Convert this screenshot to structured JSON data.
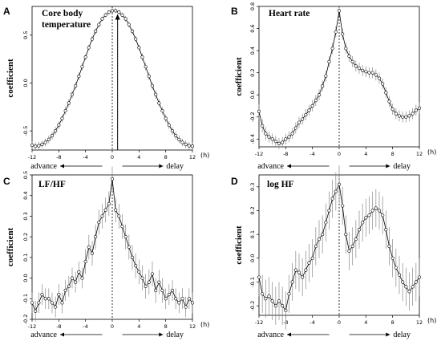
{
  "chart_data": [
    {
      "type": "line",
      "panel_label": "A",
      "title_lines": [
        "Core body",
        "temperature"
      ],
      "xlabel": "",
      "ylabel": "coefficient",
      "x_unit": "(h)",
      "xlim": [
        -12,
        12
      ],
      "ylim": [
        -0.7,
        0.8
      ],
      "x_ticks": [
        -12,
        -8,
        -4,
        0,
        4,
        8,
        12
      ],
      "y_ticks": [
        -0.5,
        0.0,
        0.5
      ],
      "advance_label": "advance",
      "delay_label": "delay",
      "grid": false,
      "series": [
        {
          "x": [
            -12,
            -11.5,
            -11,
            -10.5,
            -10,
            -9.5,
            -9,
            -8.5,
            -8,
            -7.5,
            -7,
            -6.5,
            -6,
            -5.5,
            -5,
            -4.5,
            -4,
            -3.5,
            -3,
            -2.5,
            -2,
            -1.5,
            -1,
            -0.5,
            0,
            0.5,
            1,
            1.5,
            2,
            2.5,
            3,
            3.5,
            4,
            4.5,
            5,
            5.5,
            6,
            6.5,
            7,
            7.5,
            8,
            8.5,
            9,
            9.5,
            10,
            10.5,
            11,
            11.5,
            12
          ],
          "y": [
            -0.65,
            -0.66,
            -0.655,
            -0.64,
            -0.62,
            -0.59,
            -0.55,
            -0.5,
            -0.44,
            -0.37,
            -0.29,
            -0.21,
            -0.12,
            -0.03,
            0.07,
            0.17,
            0.27,
            0.37,
            0.46,
            0.54,
            0.61,
            0.67,
            0.71,
            0.74,
            0.755,
            0.755,
            0.74,
            0.71,
            0.67,
            0.61,
            0.54,
            0.46,
            0.37,
            0.27,
            0.17,
            0.07,
            -0.03,
            -0.12,
            -0.21,
            -0.29,
            -0.37,
            -0.44,
            -0.5,
            -0.55,
            -0.59,
            -0.62,
            -0.64,
            -0.655,
            -0.66
          ],
          "err": [
            0.04,
            0.04,
            0.04,
            0.04,
            0.04,
            0.04,
            0.04,
            0.04,
            0.04,
            0.04,
            0.04,
            0.04,
            0.04,
            0.04,
            0.04,
            0.04,
            0.03,
            0.03,
            0.03,
            0.03,
            0.03,
            0.025,
            0.025,
            0.025,
            0.025,
            0.025,
            0.025,
            0.025,
            0.03,
            0.03,
            0.03,
            0.03,
            0.03,
            0.04,
            0.04,
            0.04,
            0.04,
            0.04,
            0.04,
            0.04,
            0.04,
            0.04,
            0.04,
            0.04,
            0.04,
            0.04,
            0.04,
            0.04,
            0.04
          ]
        }
      ],
      "zero_line_x": 0,
      "peak_arrow": {
        "x": 0.8,
        "y_from": -0.7,
        "y_to": 0.72
      }
    },
    {
      "type": "line",
      "panel_label": "B",
      "title_lines": [
        "Heart rate"
      ],
      "xlabel": "",
      "ylabel": "coefficient",
      "x_unit": "(h)",
      "xlim": [
        -12,
        12
      ],
      "ylim": [
        -0.47,
        0.8
      ],
      "x_ticks": [
        -12,
        -8,
        -4,
        0,
        4,
        8,
        12
      ],
      "y_ticks": [
        -0.4,
        -0.2,
        0.0,
        0.2,
        0.4,
        0.6,
        0.8
      ],
      "advance_label": "advance",
      "delay_label": "delay",
      "grid": false,
      "series": [
        {
          "x": [
            -12,
            -11.5,
            -11,
            -10.5,
            -10,
            -9.5,
            -9,
            -8.5,
            -8,
            -7.5,
            -7,
            -6.5,
            -6,
            -5.5,
            -5,
            -4.5,
            -4,
            -3.5,
            -3,
            -2.5,
            -2,
            -1.5,
            -1,
            -0.5,
            0,
            0.5,
            1,
            1.5,
            2,
            2.5,
            3,
            3.5,
            4,
            4.5,
            5,
            5.5,
            6,
            6.5,
            7,
            7.5,
            8,
            8.5,
            9,
            9.5,
            10,
            10.5,
            11,
            11.5,
            12
          ],
          "y": [
            -0.15,
            -0.28,
            -0.35,
            -0.38,
            -0.4,
            -0.42,
            -0.44,
            -0.43,
            -0.4,
            -0.38,
            -0.35,
            -0.3,
            -0.25,
            -0.22,
            -0.18,
            -0.14,
            -0.1,
            -0.05,
            0.0,
            0.08,
            0.17,
            0.3,
            0.42,
            0.57,
            0.76,
            0.55,
            0.42,
            0.35,
            0.3,
            0.26,
            0.24,
            0.22,
            0.21,
            0.2,
            0.2,
            0.18,
            0.15,
            0.1,
            0.02,
            -0.06,
            -0.13,
            -0.17,
            -0.19,
            -0.2,
            -0.2,
            -0.19,
            -0.17,
            -0.14,
            -0.12
          ],
          "err": [
            0.07,
            0.06,
            0.06,
            0.05,
            0.05,
            0.05,
            0.05,
            0.05,
            0.05,
            0.05,
            0.05,
            0.05,
            0.05,
            0.05,
            0.05,
            0.05,
            0.05,
            0.05,
            0.05,
            0.05,
            0.05,
            0.05,
            0.05,
            0.05,
            0.05,
            0.05,
            0.05,
            0.05,
            0.05,
            0.05,
            0.05,
            0.05,
            0.05,
            0.05,
            0.05,
            0.05,
            0.05,
            0.05,
            0.05,
            0.05,
            0.05,
            0.05,
            0.05,
            0.05,
            0.05,
            0.05,
            0.05,
            0.05,
            0.05
          ]
        }
      ],
      "zero_line_x": 0
    },
    {
      "type": "line",
      "panel_label": "C",
      "title_lines": [
        "LF/HF"
      ],
      "xlabel": "",
      "ylabel": "coefficient",
      "x_unit": "(h)",
      "xlim": [
        -12,
        12
      ],
      "ylim": [
        -0.2,
        0.5
      ],
      "x_ticks": [
        -12,
        -8,
        -4,
        0,
        4,
        8,
        12
      ],
      "y_ticks": [
        -0.2,
        -0.1,
        0.0,
        0.1,
        0.2,
        0.3,
        0.4,
        0.5
      ],
      "advance_label": "advance",
      "delay_label": "delay",
      "grid": false,
      "series": [
        {
          "x": [
            -12,
            -11.5,
            -11,
            -10.5,
            -10,
            -9.5,
            -9,
            -8.5,
            -8,
            -7.5,
            -7,
            -6.5,
            -6,
            -5.5,
            -5,
            -4.5,
            -4,
            -3.5,
            -3,
            -2.5,
            -2,
            -1.5,
            -1,
            -0.5,
            0,
            0.5,
            1,
            1.5,
            2,
            2.5,
            3,
            3.5,
            4,
            4.5,
            5,
            5.5,
            6,
            6.5,
            7,
            7.5,
            8,
            8.5,
            9,
            9.5,
            10,
            10.5,
            11,
            11.5,
            12
          ],
          "y": [
            -0.12,
            -0.16,
            -0.12,
            -0.08,
            -0.1,
            -0.1,
            -0.12,
            -0.14,
            -0.08,
            -0.12,
            -0.06,
            -0.04,
            0.0,
            -0.02,
            0.03,
            0.0,
            0.08,
            0.15,
            0.12,
            0.2,
            0.27,
            0.3,
            0.33,
            0.36,
            0.48,
            0.33,
            0.3,
            0.25,
            0.2,
            0.15,
            0.1,
            0.06,
            0.03,
            0.0,
            -0.04,
            -0.02,
            0.02,
            -0.06,
            -0.02,
            -0.06,
            -0.1,
            -0.08,
            -0.06,
            -0.1,
            -0.12,
            -0.1,
            -0.14,
            -0.1,
            -0.12
          ],
          "err": [
            0.05,
            0.05,
            0.05,
            0.05,
            0.05,
            0.05,
            0.05,
            0.05,
            0.05,
            0.05,
            0.05,
            0.05,
            0.05,
            0.05,
            0.05,
            0.05,
            0.06,
            0.06,
            0.06,
            0.06,
            0.06,
            0.06,
            0.06,
            0.06,
            0.06,
            0.06,
            0.06,
            0.06,
            0.06,
            0.06,
            0.06,
            0.06,
            0.06,
            0.06,
            0.06,
            0.06,
            0.06,
            0.06,
            0.06,
            0.06,
            0.05,
            0.05,
            0.05,
            0.05,
            0.05,
            0.05,
            0.05,
            0.05,
            0.05
          ]
        }
      ],
      "zero_line_x": 0
    },
    {
      "type": "line",
      "panel_label": "D",
      "title_lines": [
        "log HF"
      ],
      "xlabel": "",
      "ylabel": "coefficient",
      "x_unit": "(h)",
      "xlim": [
        -12,
        12
      ],
      "ylim": [
        -0.24,
        0.35
      ],
      "x_ticks": [
        -12,
        -8,
        -4,
        0,
        4,
        8,
        12
      ],
      "y_ticks": [
        -0.2,
        -0.1,
        0.0,
        0.1,
        0.2,
        0.3
      ],
      "advance_label": "advance",
      "delay_label": "delay",
      "grid": false,
      "series": [
        {
          "x": [
            -12,
            -11.5,
            -11,
            -10.5,
            -10,
            -9.5,
            -9,
            -8.5,
            -8,
            -7.5,
            -7,
            -6.5,
            -6,
            -5.5,
            -5,
            -4.5,
            -4,
            -3.5,
            -3,
            -2.5,
            -2,
            -1.5,
            -1,
            -0.5,
            0,
            0.5,
            1,
            1.5,
            2,
            2.5,
            3,
            3.5,
            4,
            4.5,
            5,
            5.5,
            6,
            6.5,
            7,
            7.5,
            8,
            8.5,
            9,
            9.5,
            10,
            10.5,
            11,
            11.5,
            12
          ],
          "y": [
            -0.08,
            -0.15,
            -0.17,
            -0.16,
            -0.18,
            -0.2,
            -0.18,
            -0.2,
            -0.22,
            -0.15,
            -0.1,
            -0.05,
            -0.06,
            -0.08,
            -0.05,
            -0.02,
            0.0,
            0.05,
            0.08,
            0.1,
            0.15,
            0.2,
            0.25,
            0.28,
            0.31,
            0.22,
            0.1,
            0.03,
            0.05,
            0.08,
            0.12,
            0.15,
            0.17,
            0.18,
            0.2,
            0.21,
            0.2,
            0.18,
            0.12,
            0.05,
            0.0,
            -0.04,
            -0.07,
            -0.1,
            -0.12,
            -0.14,
            -0.12,
            -0.1,
            -0.08
          ],
          "err": [
            0.08,
            0.08,
            0.08,
            0.08,
            0.08,
            0.08,
            0.08,
            0.08,
            0.08,
            0.08,
            0.08,
            0.08,
            0.08,
            0.08,
            0.08,
            0.08,
            0.08,
            0.08,
            0.08,
            0.08,
            0.08,
            0.08,
            0.08,
            0.08,
            0.08,
            0.08,
            0.08,
            0.08,
            0.08,
            0.08,
            0.08,
            0.08,
            0.08,
            0.08,
            0.08,
            0.08,
            0.08,
            0.08,
            0.08,
            0.08,
            0.08,
            0.08,
            0.08,
            0.08,
            0.08,
            0.08,
            0.08,
            0.08,
            0.08
          ]
        }
      ],
      "zero_line_x": 0
    }
  ]
}
